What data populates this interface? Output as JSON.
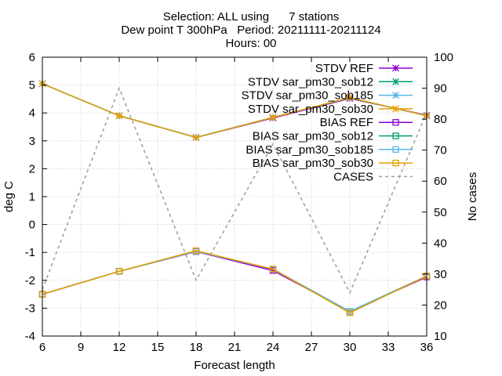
{
  "chart_data": {
    "type": "line",
    "title_lines": [
      "Selection: ALL using      7 stations",
      "Dew point T 300hPa   Period: 20211111-20211124",
      "Hours: 00"
    ],
    "xlabel": "Forecast length",
    "ylabel": "deg C",
    "y2label": "No cases",
    "xlim": [
      6,
      36
    ],
    "ylim": [
      -4,
      6
    ],
    "y2lim": [
      10,
      100
    ],
    "x_ticks": [
      6,
      9,
      12,
      15,
      18,
      21,
      24,
      27,
      30,
      33,
      36
    ],
    "y_ticks": [
      -4,
      -3,
      -2,
      -1,
      0,
      1,
      2,
      3,
      4,
      5,
      6
    ],
    "y2_ticks": [
      10,
      20,
      30,
      40,
      50,
      60,
      70,
      80,
      90,
      100
    ],
    "grid": true,
    "legend_position": "top-right",
    "x": [
      6,
      12,
      18,
      24,
      30,
      36
    ],
    "series": [
      {
        "name": "STDV REF",
        "axis": "y",
        "color": "#9400d3",
        "marker": "star",
        "dash": "solid",
        "values": [
          5.05,
          3.9,
          3.12,
          3.82,
          4.52,
          3.92
        ]
      },
      {
        "name": "STDV sar_pm30_sob12",
        "axis": "y",
        "color": "#009e73",
        "marker": "star",
        "dash": "solid",
        "values": [
          5.05,
          3.9,
          3.12,
          3.84,
          4.54,
          3.9
        ]
      },
      {
        "name": "STDV sar_pm30_sob185",
        "axis": "y",
        "color": "#56b4e9",
        "marker": "star",
        "dash": "solid",
        "values": [
          5.05,
          3.9,
          3.13,
          3.84,
          4.55,
          3.9
        ]
      },
      {
        "name": "STDV sar_pm30_sob30",
        "axis": "y",
        "color": "#e69f00",
        "marker": "star",
        "dash": "solid",
        "values": [
          5.05,
          3.9,
          3.12,
          3.84,
          4.55,
          3.9
        ]
      },
      {
        "name": "BIAS REF",
        "axis": "y",
        "color": "#9400d3",
        "marker": "square",
        "dash": "solid",
        "values": [
          -2.5,
          -1.68,
          -0.97,
          -1.65,
          -3.12,
          -1.88
        ]
      },
      {
        "name": "BIAS sar_pm30_sob12",
        "axis": "y",
        "color": "#009e73",
        "marker": "square",
        "dash": "solid",
        "values": [
          -2.5,
          -1.68,
          -0.96,
          -1.6,
          -3.12,
          -1.85
        ]
      },
      {
        "name": "BIAS sar_pm30_sob185",
        "axis": "y",
        "color": "#56b4e9",
        "marker": "square",
        "dash": "solid",
        "values": [
          -2.5,
          -1.68,
          -0.96,
          -1.6,
          -3.12,
          -1.85
        ]
      },
      {
        "name": "BIAS sar_pm30_sob30",
        "axis": "y",
        "color": "#e69f00",
        "marker": "square",
        "dash": "solid",
        "values": [
          -2.5,
          -1.68,
          -0.94,
          -1.6,
          -3.17,
          -1.85
        ]
      },
      {
        "name": "CASES",
        "axis": "y2",
        "color": "#a0a0a0",
        "marker": "none",
        "dash": "dashed",
        "values": [
          25,
          90,
          28,
          72,
          24,
          82
        ]
      }
    ]
  }
}
